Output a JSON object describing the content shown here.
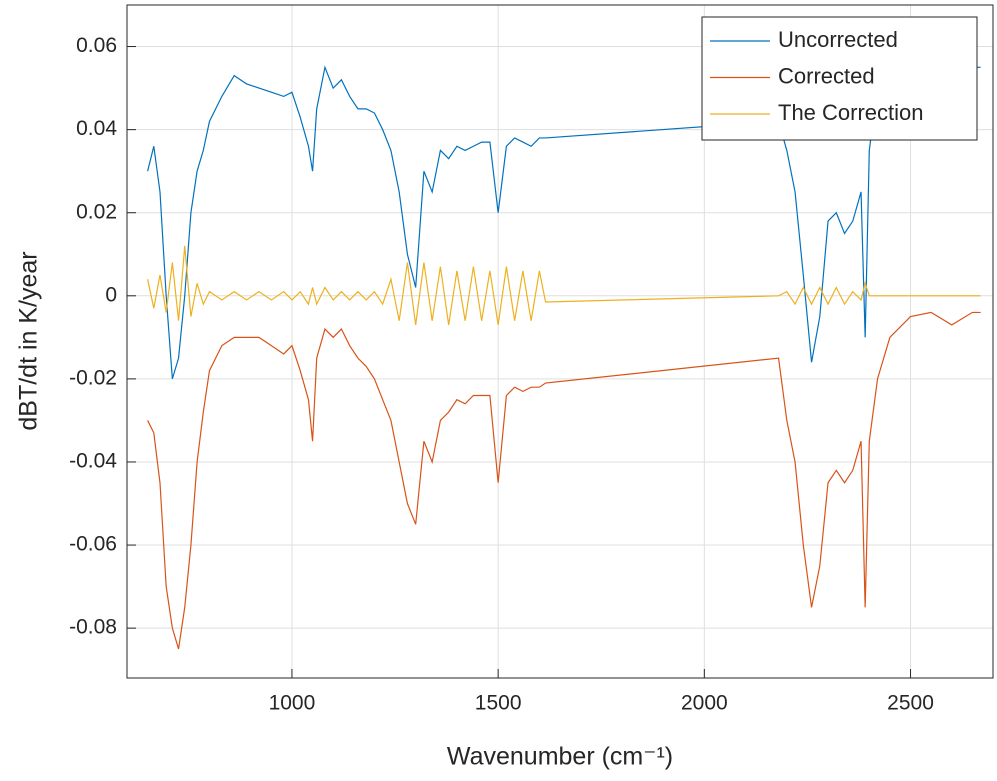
{
  "chart_data": {
    "type": "line",
    "xlabel": "Wavenumber (cm⁻¹)",
    "ylabel": "dBT/dt in K/year",
    "x": [
      650,
      665,
      680,
      695,
      710,
      725,
      740,
      755,
      770,
      785,
      800,
      830,
      860,
      890,
      920,
      950,
      980,
      1000,
      1020,
      1040,
      1050,
      1060,
      1080,
      1100,
      1120,
      1140,
      1160,
      1180,
      1200,
      1220,
      1240,
      1260,
      1280,
      1300,
      1320,
      1340,
      1360,
      1380,
      1400,
      1420,
      1440,
      1460,
      1480,
      1500,
      1520,
      1540,
      1560,
      1580,
      1600,
      1615,
      2180,
      2200,
      2220,
      2240,
      2260,
      2280,
      2300,
      2320,
      2340,
      2360,
      2380,
      2390,
      2400,
      2420,
      2450,
      2500,
      2550,
      2600,
      2650,
      2670
    ],
    "series": [
      {
        "name": "Uncorrected",
        "color": "#0072bd",
        "values": [
          0.03,
          0.036,
          0.025,
          0.0,
          -0.02,
          -0.015,
          0.0,
          0.02,
          0.03,
          0.035,
          0.042,
          0.048,
          0.053,
          0.051,
          0.05,
          0.049,
          0.048,
          0.049,
          0.043,
          0.036,
          0.03,
          0.045,
          0.055,
          0.05,
          0.052,
          0.048,
          0.045,
          0.045,
          0.044,
          0.04,
          0.035,
          0.025,
          0.01,
          0.002,
          0.03,
          0.025,
          0.035,
          0.033,
          0.036,
          0.035,
          0.036,
          0.037,
          0.037,
          0.02,
          0.036,
          0.038,
          0.037,
          0.036,
          0.038,
          0.038,
          0.042,
          0.035,
          0.025,
          0.005,
          -0.016,
          -0.005,
          0.018,
          0.02,
          0.015,
          0.018,
          0.025,
          -0.01,
          0.035,
          0.05,
          0.055,
          0.055,
          0.055,
          0.055,
          0.055,
          0.055
        ]
      },
      {
        "name": "Corrected",
        "color": "#d95319",
        "values": [
          -0.03,
          -0.033,
          -0.045,
          -0.07,
          -0.08,
          -0.085,
          -0.075,
          -0.06,
          -0.04,
          -0.028,
          -0.018,
          -0.012,
          -0.01,
          -0.01,
          -0.01,
          -0.012,
          -0.014,
          -0.012,
          -0.018,
          -0.025,
          -0.035,
          -0.015,
          -0.008,
          -0.01,
          -0.008,
          -0.012,
          -0.015,
          -0.017,
          -0.02,
          -0.025,
          -0.03,
          -0.04,
          -0.05,
          -0.055,
          -0.035,
          -0.04,
          -0.03,
          -0.028,
          -0.025,
          -0.026,
          -0.024,
          -0.024,
          -0.024,
          -0.045,
          -0.024,
          -0.022,
          -0.023,
          -0.022,
          -0.022,
          -0.021,
          -0.015,
          -0.03,
          -0.04,
          -0.06,
          -0.075,
          -0.065,
          -0.045,
          -0.042,
          -0.045,
          -0.042,
          -0.035,
          -0.075,
          -0.035,
          -0.02,
          -0.01,
          -0.005,
          -0.004,
          -0.007,
          -0.004,
          -0.004
        ]
      },
      {
        "name": "The Correction",
        "color": "#edb120",
        "values": [
          0.004,
          -0.003,
          0.005,
          -0.004,
          0.008,
          -0.006,
          0.012,
          -0.005,
          0.003,
          -0.002,
          0.001,
          -0.001,
          0.001,
          -0.001,
          0.001,
          -0.001,
          0.001,
          -0.001,
          0.001,
          -0.002,
          0.002,
          -0.002,
          0.002,
          -0.001,
          0.001,
          -0.001,
          0.001,
          -0.001,
          0.001,
          -0.002,
          0.004,
          -0.006,
          0.008,
          -0.007,
          0.008,
          -0.006,
          0.007,
          -0.007,
          0.006,
          -0.006,
          0.007,
          -0.006,
          0.006,
          -0.007,
          0.007,
          -0.006,
          0.006,
          -0.006,
          0.006,
          -0.0015,
          0.0,
          0.001,
          -0.002,
          0.002,
          -0.002,
          0.002,
          -0.002,
          0.002,
          -0.002,
          0.001,
          -0.001,
          0.003,
          0.0,
          0.0,
          0.0,
          0.0,
          0.0,
          0.0,
          0.0,
          0.0
        ]
      }
    ],
    "xlim": [
      600,
      2700
    ],
    "ylim": [
      -0.092,
      0.07
    ],
    "xticks": [
      1000,
      1500,
      2000,
      2500
    ],
    "yticks": [
      -0.08,
      -0.06,
      -0.04,
      -0.02,
      0,
      0.02,
      0.04,
      0.06
    ],
    "grid": true,
    "legend": "top-right"
  }
}
